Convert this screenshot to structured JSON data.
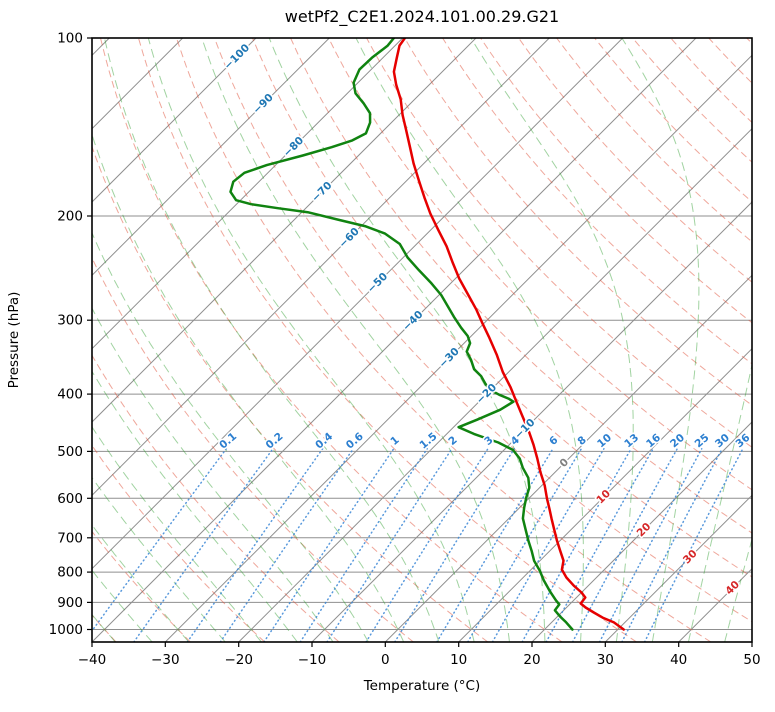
{
  "title": "wetPf2_C2E1.2024.101.00.29.G21",
  "axes": {
    "xlabel": "Temperature (°C)",
    "ylabel": "Pressure (hPa)",
    "x_ticks": [
      -40,
      -30,
      -20,
      -10,
      0,
      10,
      20,
      30,
      40,
      50
    ],
    "y_ticks": [
      100,
      200,
      300,
      400,
      500,
      600,
      700,
      800,
      900,
      1000
    ],
    "x_range_c": [
      -40,
      50
    ],
    "pressure_range_hpa": [
      100,
      1050
    ],
    "y_scale": "log"
  },
  "colors": {
    "temperature_line": "#e60000",
    "dewpoint_line": "#108310",
    "isotherm_gridline": "#8f8f8f",
    "pressure_gridline": "#8f8f8f",
    "dry_adiabat": "#e05038",
    "moist_adiabat": "#2e9e2e",
    "mixing_ratio_line": "#3c87d6",
    "isotherm_label_negative": "#1f77b4",
    "isotherm_label_zero": "#808080",
    "isotherm_label_positive": "#d62728",
    "mixing_ratio_label": "#2c7fd0",
    "axis_spine": "#000000"
  },
  "chart_data": {
    "type": "line",
    "subtype": "skew_t_log_p",
    "title": "wetPf2_C2E1.2024.101.00.29.G21",
    "xlabel": "Temperature (°C)",
    "ylabel": "Pressure (hPa)",
    "skew_degrees": 45,
    "x_range_c": [
      -40,
      50
    ],
    "pressure_range_hpa": [
      100,
      1050
    ],
    "grid": true,
    "legend": "none",
    "isotherm_label_values_c": [
      -100,
      -90,
      -80,
      -70,
      -60,
      -50,
      -40,
      -30,
      -20,
      -10,
      0,
      10,
      20,
      30,
      40
    ],
    "mixing_ratio_labels_g_per_kg": [
      0.1,
      0.2,
      0.4,
      0.6,
      1,
      1.5,
      2,
      3,
      4,
      6,
      8,
      10,
      13,
      16,
      20,
      25,
      30,
      36
    ],
    "background_lines": {
      "isotherms_c": {
        "min": -120,
        "max": 50,
        "step": 10
      },
      "dry_adiabats_theta_c": {
        "min": -40,
        "max": 190,
        "step": 10
      },
      "moist_adiabats_start_c_at_1000hpa": {
        "min": -40,
        "max": 50,
        "step": 5
      },
      "mixing_ratio_lines_top_hpa": 495
    },
    "series": [
      {
        "name": "temperature",
        "color": "#e60000",
        "units": [
          "hPa",
          "degC"
        ],
        "points_p_t": [
          [
            100,
            -79.7
          ],
          [
            103,
            -79.4
          ],
          [
            108,
            -78.1
          ],
          [
            114,
            -76.6
          ],
          [
            120,
            -74.5
          ],
          [
            127,
            -71.9
          ],
          [
            135,
            -69.5
          ],
          [
            143,
            -67
          ],
          [
            153,
            -64.1
          ],
          [
            163,
            -61.4
          ],
          [
            174,
            -58.4
          ],
          [
            186,
            -55.3
          ],
          [
            198,
            -52.3
          ],
          [
            211,
            -49
          ],
          [
            225,
            -45.6
          ],
          [
            240,
            -42.5
          ],
          [
            255,
            -39.5
          ],
          [
            272,
            -36
          ],
          [
            288,
            -32.9
          ],
          [
            302,
            -30.5
          ],
          [
            320,
            -27.5
          ],
          [
            343,
            -24
          ],
          [
            367,
            -20.8
          ],
          [
            390,
            -17.6
          ],
          [
            412,
            -14.9
          ],
          [
            435,
            -12.2
          ],
          [
            461,
            -9.3
          ],
          [
            487,
            -6.7
          ],
          [
            514,
            -4.3
          ],
          [
            541,
            -2.1
          ],
          [
            571,
            0.4
          ],
          [
            601,
            2.5
          ],
          [
            625,
            4.2
          ],
          [
            649,
            5.8
          ],
          [
            678,
            7.7
          ],
          [
            708,
            9.6
          ],
          [
            736,
            11.4
          ],
          [
            765,
            13.2
          ],
          [
            792,
            14.2
          ],
          [
            817,
            15.9
          ],
          [
            843,
            18
          ],
          [
            866,
            20
          ],
          [
            883,
            21.2
          ],
          [
            904,
            21.4
          ],
          [
            918,
            22.6
          ],
          [
            936,
            24.4
          ],
          [
            955,
            26.3
          ],
          [
            973,
            28.5
          ],
          [
            1000,
            30.8
          ]
        ]
      },
      {
        "name": "dewpoint",
        "color": "#108310",
        "units": [
          "hPa",
          "degC"
        ],
        "points_p_t": [
          [
            100,
            -81.2
          ],
          [
            103,
            -81
          ],
          [
            108,
            -81.5
          ],
          [
            113,
            -81.6
          ],
          [
            119,
            -80.6
          ],
          [
            124,
            -78.9
          ],
          [
            129,
            -76.4
          ],
          [
            134,
            -74.2
          ],
          [
            139,
            -72.9
          ],
          [
            145,
            -72
          ],
          [
            149,
            -72.9
          ],
          [
            153,
            -74.8
          ],
          [
            158,
            -77.6
          ],
          [
            164,
            -81.2
          ],
          [
            169,
            -83.2
          ],
          [
            175,
            -83.5
          ],
          [
            182,
            -82.5
          ],
          [
            188,
            -80.6
          ],
          [
            191,
            -78
          ],
          [
            194,
            -73.8
          ],
          [
            197,
            -69.2
          ],
          [
            203,
            -63.9
          ],
          [
            208,
            -59.5
          ],
          [
            214,
            -55.8
          ],
          [
            223,
            -52.3
          ],
          [
            235,
            -49.4
          ],
          [
            247,
            -46.1
          ],
          [
            260,
            -42.6
          ],
          [
            272,
            -39.7
          ],
          [
            284,
            -37.3
          ],
          [
            296,
            -35
          ],
          [
            309,
            -32.5
          ],
          [
            319,
            -30.5
          ],
          [
            328,
            -29.2
          ],
          [
            339,
            -28.5
          ],
          [
            350,
            -26.8
          ],
          [
            363,
            -25.1
          ],
          [
            373,
            -23.2
          ],
          [
            384,
            -21.6
          ],
          [
            393,
            -20.2
          ],
          [
            401,
            -18.2
          ],
          [
            407,
            -16.4
          ],
          [
            412,
            -15.3
          ],
          [
            425,
            -16
          ],
          [
            442,
            -17.8
          ],
          [
            455,
            -19.3
          ],
          [
            467,
            -16.3
          ],
          [
            483,
            -11.8
          ],
          [
            497,
            -8.8
          ],
          [
            514,
            -6.7
          ],
          [
            533,
            -5
          ],
          [
            554,
            -2.9
          ],
          [
            576,
            -1.4
          ],
          [
            598,
            -0.5
          ],
          [
            622,
            0.6
          ],
          [
            649,
            1.9
          ],
          [
            678,
            3.8
          ],
          [
            708,
            5.7
          ],
          [
            736,
            7.5
          ],
          [
            765,
            9.2
          ],
          [
            795,
            11.3
          ],
          [
            826,
            13.2
          ],
          [
            863,
            15.6
          ],
          [
            893,
            17.6
          ],
          [
            907,
            18.6
          ],
          [
            928,
            18.8
          ],
          [
            950,
            20.3
          ],
          [
            973,
            22
          ],
          [
            1000,
            23.8
          ]
        ]
      }
    ]
  }
}
